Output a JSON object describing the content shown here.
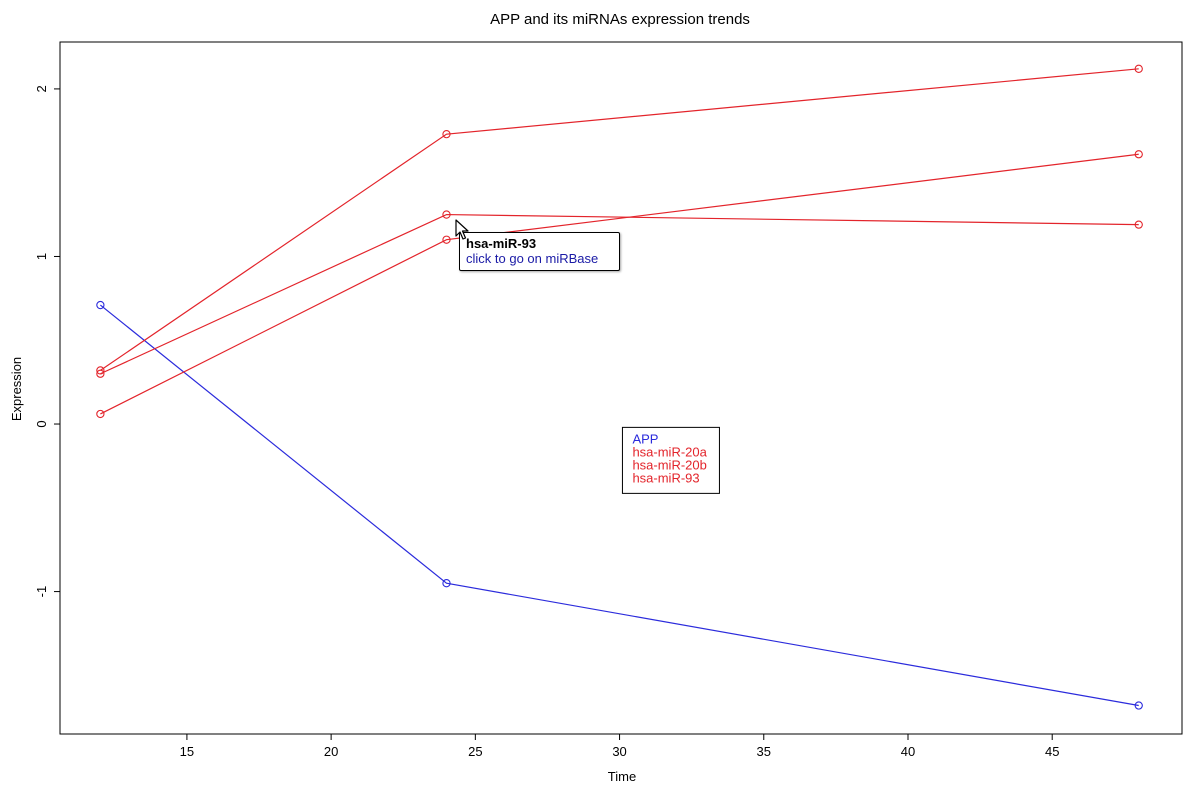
{
  "chart_data": {
    "type": "line",
    "title": "APP and its miRNAs expression trends",
    "xlabel": "Time",
    "ylabel": "Expression",
    "x": [
      12,
      24,
      48
    ],
    "xlim": [
      10.6,
      49.5
    ],
    "ylim": [
      -1.85,
      2.28
    ],
    "xticks": [
      15,
      20,
      25,
      30,
      35,
      40,
      45
    ],
    "yticks": [
      -1,
      0,
      1,
      2
    ],
    "grid": false,
    "markers": "open-circle",
    "series": [
      {
        "name": "APP",
        "color": "#2b2bdc",
        "values": [
          0.71,
          -0.95,
          -1.68
        ]
      },
      {
        "name": "hsa-miR-20a",
        "color": "#e3242b",
        "values": [
          0.32,
          1.73,
          2.12
        ]
      },
      {
        "name": "hsa-miR-20b",
        "color": "#e3242b",
        "values": [
          0.3,
          1.25,
          1.19
        ]
      },
      {
        "name": "hsa-miR-93",
        "color": "#e3242b",
        "values": [
          0.06,
          1.1,
          1.61
        ]
      }
    ],
    "legend": {
      "placement": "center-right",
      "anchor_x": 30.1,
      "anchor_y": -0.02
    }
  },
  "tooltip": {
    "title": "hsa-miR-93",
    "link": "click to go on miRBase"
  },
  "colors": {
    "axis": "#000000",
    "text": "#000000"
  }
}
